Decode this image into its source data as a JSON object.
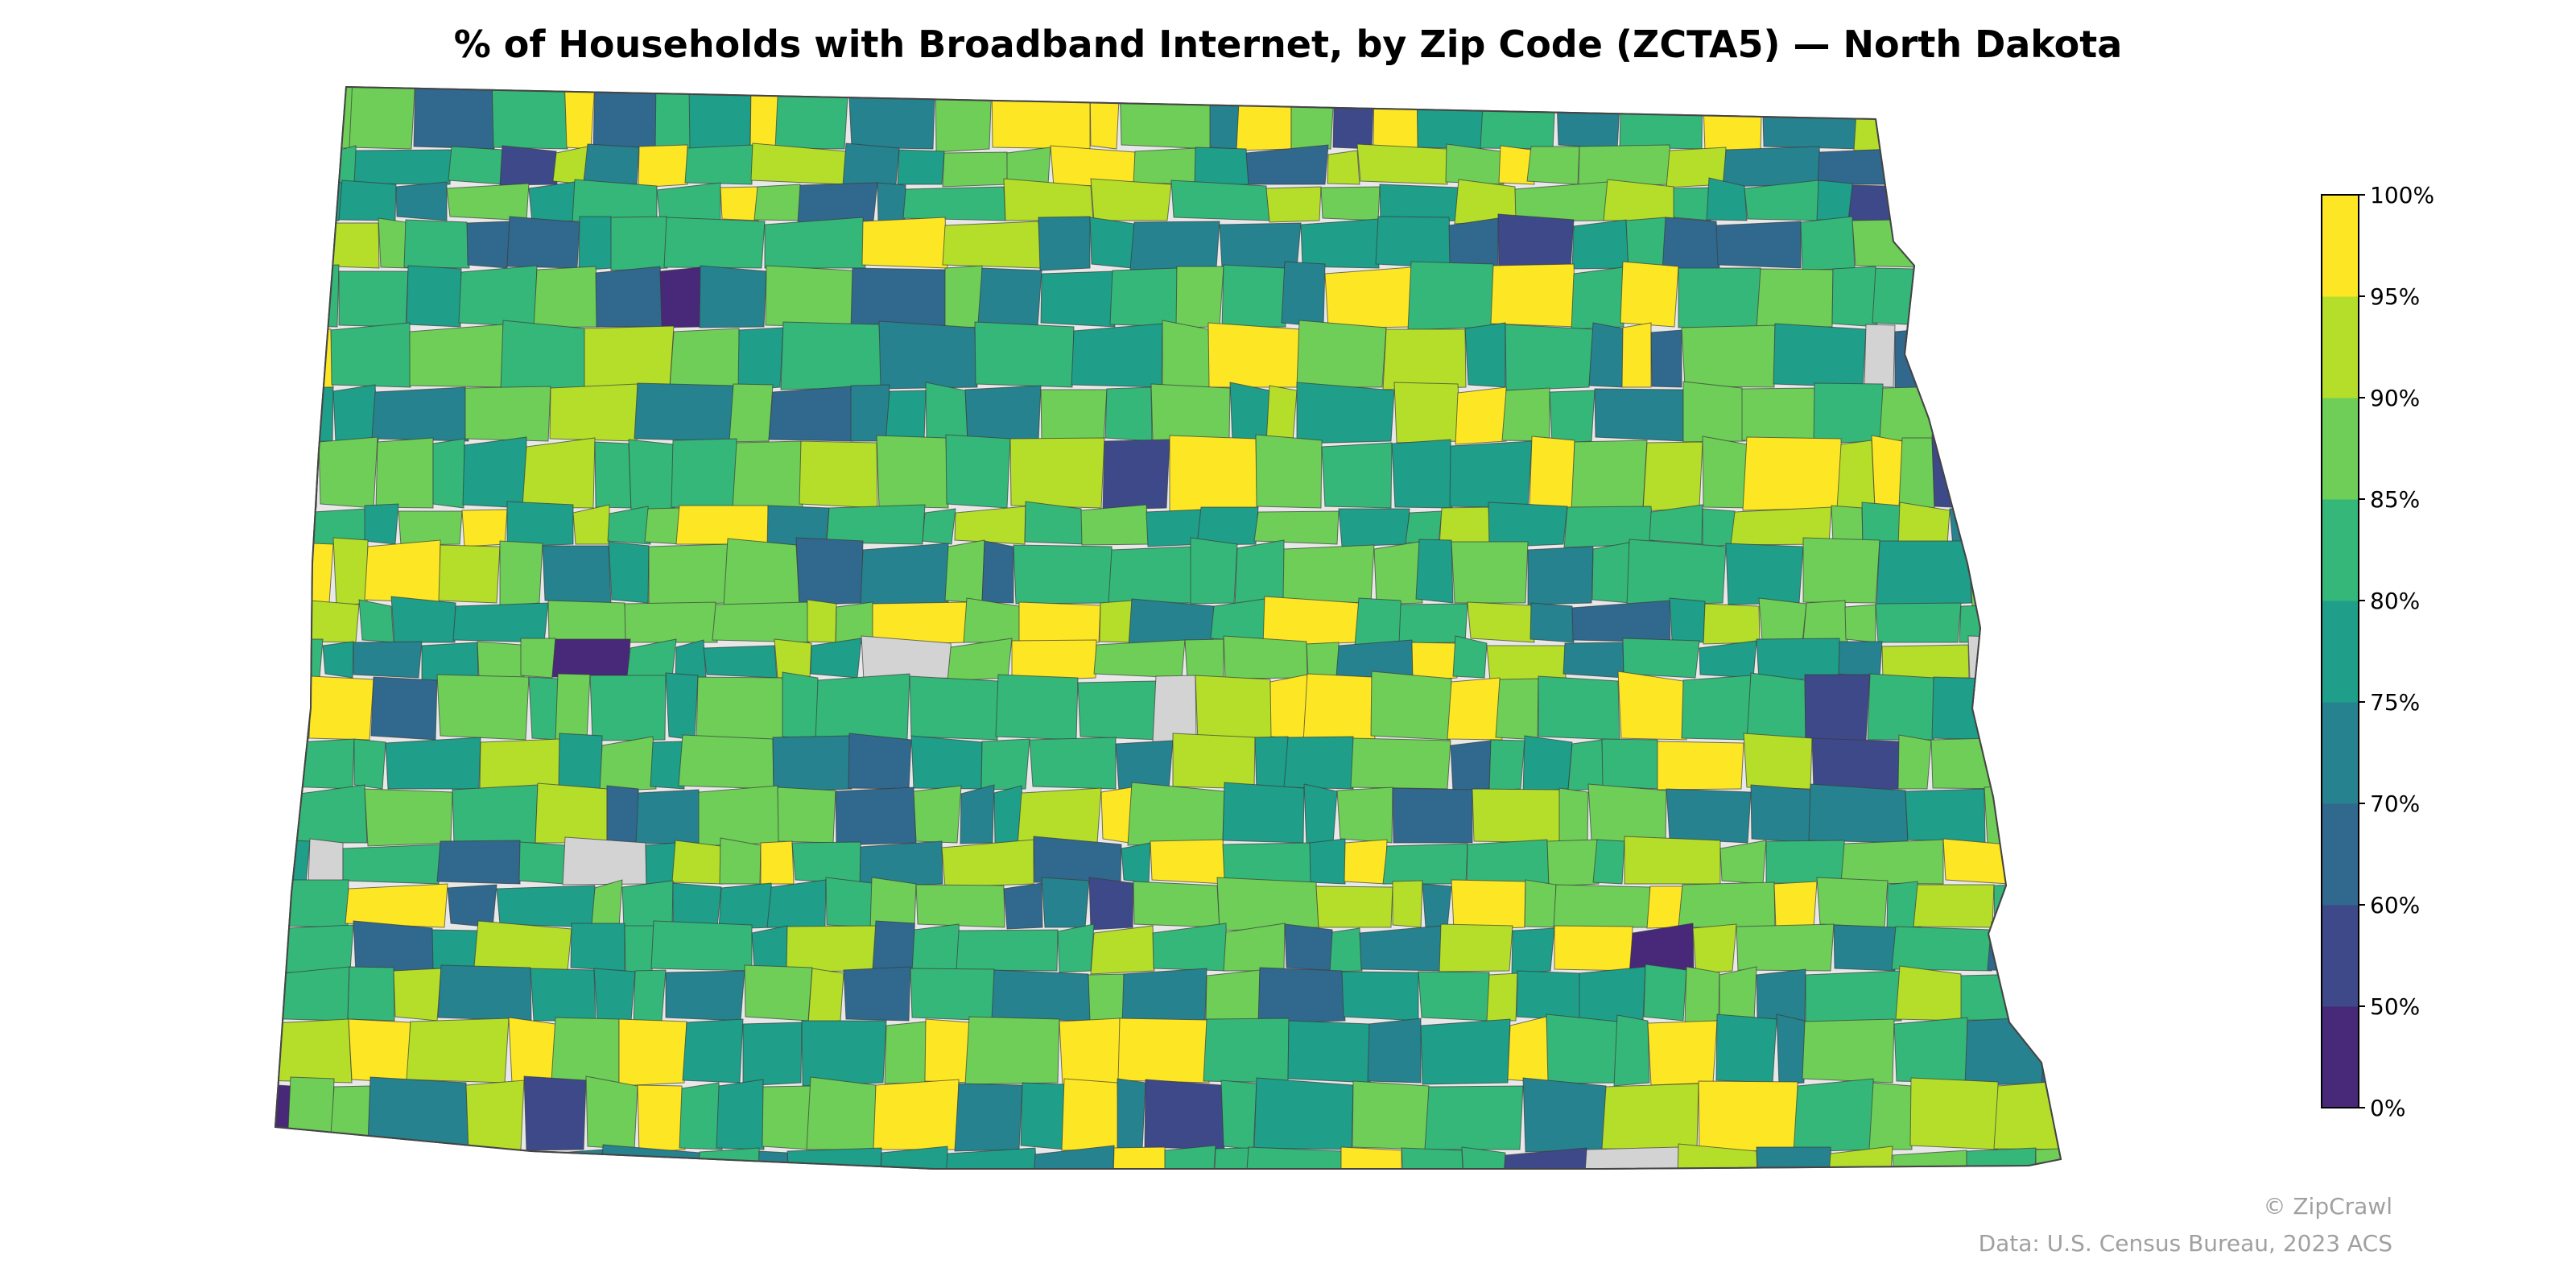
{
  "title": "% of Households with Broadband Internet, by Zip Code (ZCTA5) — North Dakota",
  "legend": {
    "bins": [
      {
        "label": "0%",
        "color": "#440154"
      },
      {
        "label": "50%",
        "color": "#482878"
      },
      {
        "label": "60%",
        "color": "#3e4989"
      },
      {
        "label": "70%",
        "color": "#31688e"
      },
      {
        "label": "75%",
        "color": "#26828e"
      },
      {
        "label": "80%",
        "color": "#1f9e89"
      },
      {
        "label": "85%",
        "color": "#35b779"
      },
      {
        "label": "90%",
        "color": "#6ece58"
      },
      {
        "label": "95%",
        "color": "#b5de2b"
      },
      {
        "label": "100%",
        "color": "#fde725"
      }
    ],
    "no_data_color": "#d3d3d3"
  },
  "credits": {
    "brand": "© ZipCrawl",
    "source": "Data: U.S. Census Bureau, 2023 ACS"
  }
}
